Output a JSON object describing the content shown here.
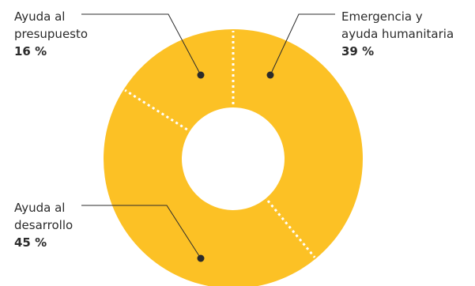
{
  "chart_data": {
    "type": "pie",
    "style": "donut",
    "slices": [
      {
        "label_lines": [
          "Emergencia y",
          "ayuda humanitaria"
        ],
        "value": 39,
        "value_label": "39 %"
      },
      {
        "label_lines": [
          "Ayuda al",
          "desarrollo"
        ],
        "value": 45,
        "value_label": "45 %"
      },
      {
        "label_lines": [
          "Ayuda al",
          "presupuesto"
        ],
        "value": 16,
        "value_label": "16 %"
      }
    ],
    "colors": {
      "slice": "#fcc125",
      "divider": "#ffffff",
      "leader": "#2b2b2b",
      "text": "#2b2b2b"
    },
    "legend": "none",
    "labels": "outside with leader lines"
  }
}
